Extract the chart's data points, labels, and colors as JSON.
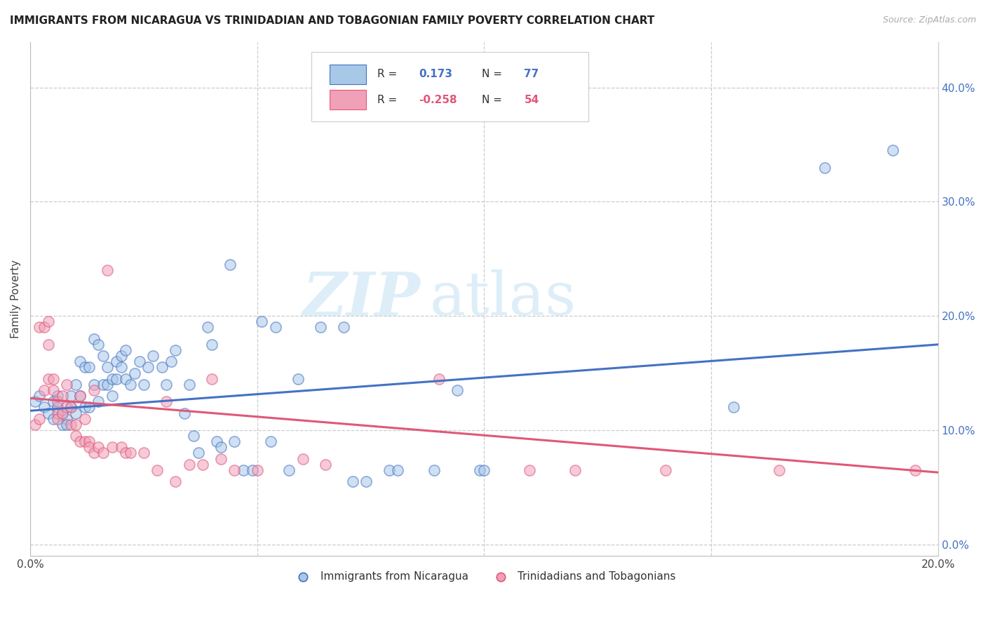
{
  "title": "IMMIGRANTS FROM NICARAGUA VS TRINIDADIAN AND TOBAGONIAN FAMILY POVERTY CORRELATION CHART",
  "source": "Source: ZipAtlas.com",
  "ylabel": "Family Poverty",
  "right_yticks": [
    "40.0%",
    "30.0%",
    "20.0%",
    "10.0%",
    "0.0%"
  ],
  "right_ytick_vals": [
    0.4,
    0.3,
    0.2,
    0.1,
    0.0
  ],
  "xrange": [
    0.0,
    0.2
  ],
  "yrange": [
    -0.01,
    0.44
  ],
  "color_blue": "#a8c8e8",
  "color_pink": "#f0a0b8",
  "line_blue": "#4472c4",
  "line_pink": "#e05878",
  "watermark_zip": "ZIP",
  "watermark_atlas": "atlas",
  "watermark_color": "#ddeef8",
  "blue_scatter": [
    [
      0.001,
      0.125
    ],
    [
      0.002,
      0.13
    ],
    [
      0.003,
      0.12
    ],
    [
      0.004,
      0.115
    ],
    [
      0.005,
      0.11
    ],
    [
      0.005,
      0.125
    ],
    [
      0.006,
      0.13
    ],
    [
      0.006,
      0.12
    ],
    [
      0.007,
      0.105
    ],
    [
      0.007,
      0.115
    ],
    [
      0.008,
      0.11
    ],
    [
      0.008,
      0.105
    ],
    [
      0.009,
      0.12
    ],
    [
      0.009,
      0.13
    ],
    [
      0.01,
      0.14
    ],
    [
      0.01,
      0.115
    ],
    [
      0.011,
      0.16
    ],
    [
      0.011,
      0.13
    ],
    [
      0.012,
      0.155
    ],
    [
      0.012,
      0.12
    ],
    [
      0.013,
      0.155
    ],
    [
      0.013,
      0.12
    ],
    [
      0.014,
      0.14
    ],
    [
      0.014,
      0.18
    ],
    [
      0.015,
      0.125
    ],
    [
      0.015,
      0.175
    ],
    [
      0.016,
      0.14
    ],
    [
      0.016,
      0.165
    ],
    [
      0.017,
      0.155
    ],
    [
      0.017,
      0.14
    ],
    [
      0.018,
      0.13
    ],
    [
      0.018,
      0.145
    ],
    [
      0.019,
      0.16
    ],
    [
      0.019,
      0.145
    ],
    [
      0.02,
      0.155
    ],
    [
      0.02,
      0.165
    ],
    [
      0.021,
      0.17
    ],
    [
      0.021,
      0.145
    ],
    [
      0.022,
      0.14
    ],
    [
      0.023,
      0.15
    ],
    [
      0.024,
      0.16
    ],
    [
      0.025,
      0.14
    ],
    [
      0.026,
      0.155
    ],
    [
      0.027,
      0.165
    ],
    [
      0.029,
      0.155
    ],
    [
      0.03,
      0.14
    ],
    [
      0.031,
      0.16
    ],
    [
      0.032,
      0.17
    ],
    [
      0.034,
      0.115
    ],
    [
      0.035,
      0.14
    ],
    [
      0.036,
      0.095
    ],
    [
      0.037,
      0.08
    ],
    [
      0.039,
      0.19
    ],
    [
      0.04,
      0.175
    ],
    [
      0.041,
      0.09
    ],
    [
      0.042,
      0.085
    ],
    [
      0.044,
      0.245
    ],
    [
      0.045,
      0.09
    ],
    [
      0.047,
      0.065
    ],
    [
      0.049,
      0.065
    ],
    [
      0.051,
      0.195
    ],
    [
      0.053,
      0.09
    ],
    [
      0.054,
      0.19
    ],
    [
      0.057,
      0.065
    ],
    [
      0.059,
      0.145
    ],
    [
      0.064,
      0.19
    ],
    [
      0.069,
      0.19
    ],
    [
      0.071,
      0.055
    ],
    [
      0.074,
      0.055
    ],
    [
      0.079,
      0.065
    ],
    [
      0.081,
      0.065
    ],
    [
      0.089,
      0.065
    ],
    [
      0.094,
      0.135
    ],
    [
      0.099,
      0.065
    ],
    [
      0.1,
      0.065
    ],
    [
      0.155,
      0.12
    ],
    [
      0.175,
      0.33
    ],
    [
      0.19,
      0.345
    ]
  ],
  "pink_scatter": [
    [
      0.001,
      0.105
    ],
    [
      0.002,
      0.11
    ],
    [
      0.002,
      0.19
    ],
    [
      0.003,
      0.135
    ],
    [
      0.003,
      0.19
    ],
    [
      0.004,
      0.145
    ],
    [
      0.004,
      0.175
    ],
    [
      0.004,
      0.195
    ],
    [
      0.005,
      0.145
    ],
    [
      0.005,
      0.135
    ],
    [
      0.006,
      0.115
    ],
    [
      0.006,
      0.125
    ],
    [
      0.006,
      0.11
    ],
    [
      0.007,
      0.13
    ],
    [
      0.007,
      0.115
    ],
    [
      0.008,
      0.14
    ],
    [
      0.008,
      0.12
    ],
    [
      0.009,
      0.12
    ],
    [
      0.009,
      0.105
    ],
    [
      0.01,
      0.105
    ],
    [
      0.01,
      0.095
    ],
    [
      0.011,
      0.13
    ],
    [
      0.011,
      0.09
    ],
    [
      0.012,
      0.11
    ],
    [
      0.012,
      0.09
    ],
    [
      0.013,
      0.09
    ],
    [
      0.013,
      0.085
    ],
    [
      0.014,
      0.135
    ],
    [
      0.014,
      0.08
    ],
    [
      0.015,
      0.085
    ],
    [
      0.016,
      0.08
    ],
    [
      0.017,
      0.24
    ],
    [
      0.018,
      0.085
    ],
    [
      0.02,
      0.085
    ],
    [
      0.021,
      0.08
    ],
    [
      0.022,
      0.08
    ],
    [
      0.025,
      0.08
    ],
    [
      0.028,
      0.065
    ],
    [
      0.03,
      0.125
    ],
    [
      0.032,
      0.055
    ],
    [
      0.035,
      0.07
    ],
    [
      0.038,
      0.07
    ],
    [
      0.04,
      0.145
    ],
    [
      0.042,
      0.075
    ],
    [
      0.045,
      0.065
    ],
    [
      0.05,
      0.065
    ],
    [
      0.06,
      0.075
    ],
    [
      0.065,
      0.07
    ],
    [
      0.09,
      0.145
    ],
    [
      0.11,
      0.065
    ],
    [
      0.12,
      0.065
    ],
    [
      0.14,
      0.065
    ],
    [
      0.165,
      0.065
    ],
    [
      0.195,
      0.065
    ]
  ],
  "blue_trend_x": [
    0.0,
    0.2
  ],
  "blue_trend_y": [
    0.117,
    0.175
  ],
  "pink_trend_x": [
    0.0,
    0.2
  ],
  "pink_trend_y": [
    0.128,
    0.063
  ]
}
